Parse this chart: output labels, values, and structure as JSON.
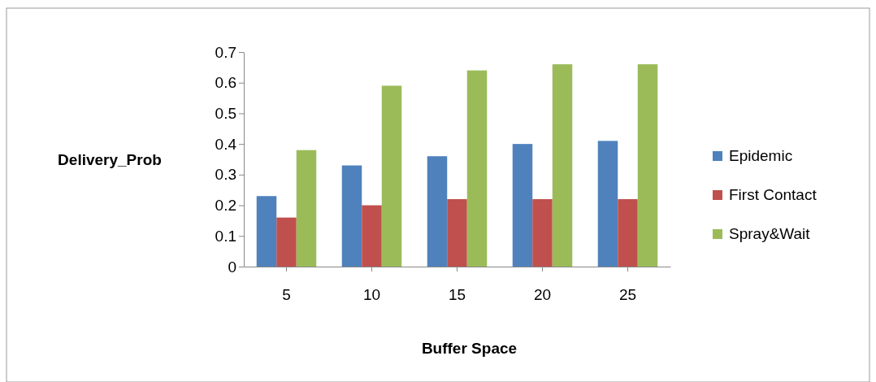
{
  "chart_data": {
    "type": "bar",
    "xlabel": "Buffer Space",
    "ylabel": "Delivery_Prob",
    "categories": [
      "5",
      "10",
      "15",
      "20",
      "25"
    ],
    "series": [
      {
        "name": "Epidemic",
        "color": "#4f81bd",
        "values": [
          0.23,
          0.33,
          0.36,
          0.4,
          0.41
        ]
      },
      {
        "name": "First Contact",
        "color": "#c0504d",
        "values": [
          0.16,
          0.2,
          0.22,
          0.22,
          0.22
        ]
      },
      {
        "name": "Spray&Wait",
        "color": "#9bbb59",
        "values": [
          0.38,
          0.59,
          0.64,
          0.66,
          0.66
        ]
      }
    ],
    "ylim": [
      0,
      0.7
    ],
    "yticks": [
      0,
      0.1,
      0.2,
      0.3,
      0.4,
      0.5,
      0.6,
      0.7
    ],
    "grid": false,
    "legend": "right"
  }
}
